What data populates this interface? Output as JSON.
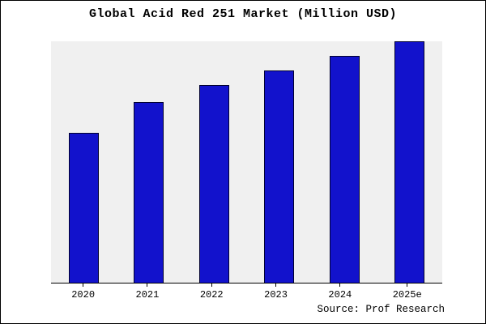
{
  "title": "Global Acid Red 251 Market (Million USD)",
  "source": "Source: Prof Research",
  "colors": {
    "bar_fill": "#1212CC",
    "bar_edge": "#000030",
    "plot_background": "#F0F0F0",
    "frame_border": "#000000"
  },
  "chart_data": {
    "type": "bar",
    "title": "Global Acid Red 251 Market (Million USD)",
    "categories": [
      "2020",
      "2021",
      "2022",
      "2023",
      "2024",
      "2025e"
    ],
    "values": [
      62,
      75,
      82,
      88,
      94,
      100
    ],
    "xlabel": "",
    "ylabel": "",
    "ylim": [
      0,
      100
    ],
    "grid": false,
    "legend": false,
    "bar_color": "#1212CC",
    "plot_bg": "#F0F0F0"
  }
}
